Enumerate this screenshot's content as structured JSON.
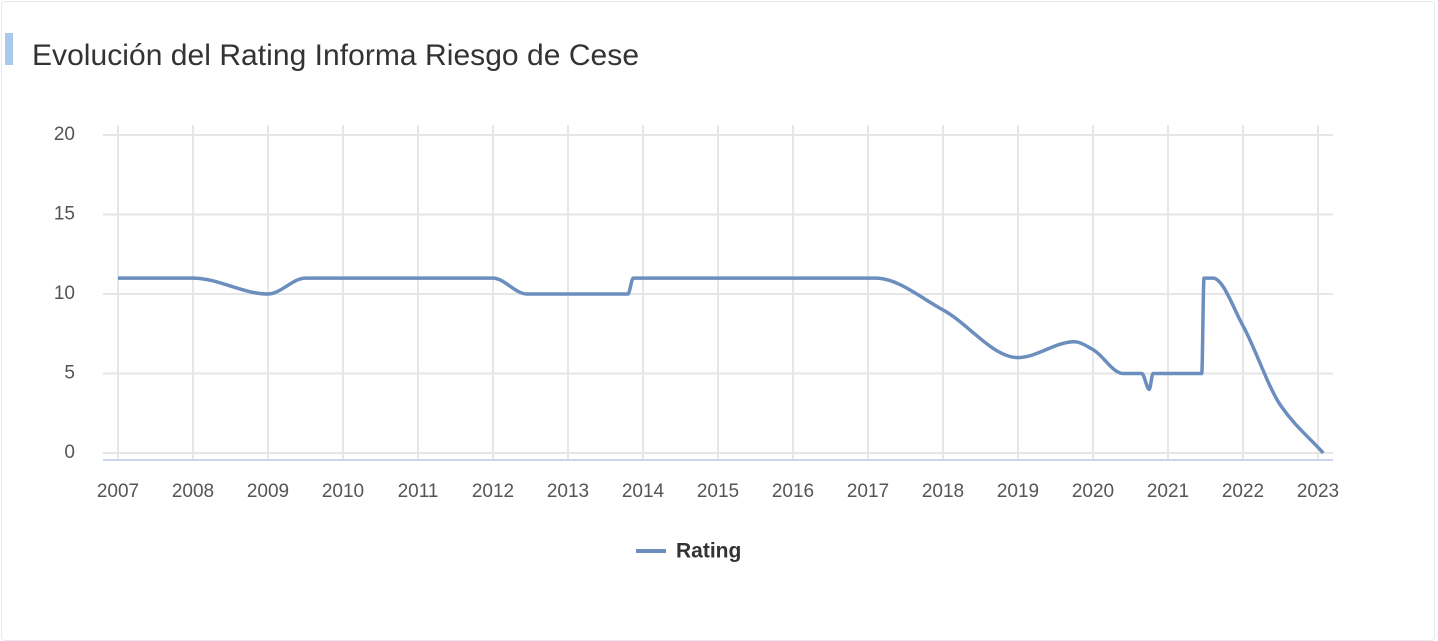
{
  "chart_data": {
    "type": "line",
    "title": "Evolución del Rating Informa Riesgo de Cese",
    "x": [
      2007,
      2008,
      2009,
      2009.5,
      2012,
      2012.45,
      2013.8,
      2013.87,
      2017.1,
      2018,
      2019,
      2019.75,
      2020,
      2020.4,
      2020.65,
      2020.75,
      2020.8,
      2021.45,
      2021.48,
      2021.6,
      2022,
      2022.5,
      2023.07
    ],
    "series": [
      {
        "name": "Rating",
        "color": "#6c8ebf",
        "values": [
          11,
          11,
          10,
          11,
          11,
          10,
          10,
          11,
          11,
          9,
          6,
          7,
          6.5,
          5,
          5,
          4,
          5,
          5,
          11,
          11,
          8,
          3,
          0
        ]
      }
    ],
    "xlim": [
      2006.8,
      2023.2
    ],
    "xticks": [
      2007,
      2008,
      2009,
      2010,
      2011,
      2012,
      2013,
      2014,
      2015,
      2016,
      2017,
      2018,
      2019,
      2020,
      2021,
      2022,
      2023
    ],
    "ylim": [
      0,
      20
    ],
    "yticks": [
      0,
      5,
      10,
      15,
      20
    ],
    "grid": true,
    "legend": "bottom"
  }
}
